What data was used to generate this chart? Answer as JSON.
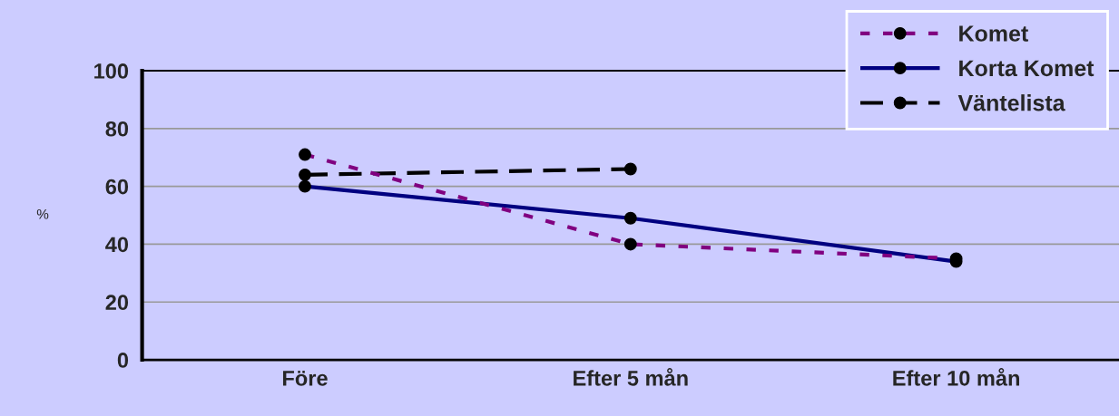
{
  "chart_data": {
    "type": "line",
    "ylabel": "%",
    "categories": [
      "Före",
      "Efter 5 mån",
      "Efter 10 mån"
    ],
    "series": [
      {
        "name": "Komet",
        "color": "#800080",
        "values": [
          71,
          40,
          35
        ],
        "line_style": "dotted"
      },
      {
        "name": "Korta Komet",
        "color": "#000080",
        "values": [
          60,
          49,
          34
        ],
        "line_style": "solid"
      },
      {
        "name": "Väntelista",
        "color": "#000000",
        "values": [
          64,
          66,
          null
        ],
        "line_style": "dashed"
      }
    ],
    "ylim": [
      0,
      100
    ],
    "yticks": [
      0,
      20,
      40,
      60,
      80,
      100
    ],
    "grid": "y",
    "legend": "top right",
    "marker": "circle"
  }
}
